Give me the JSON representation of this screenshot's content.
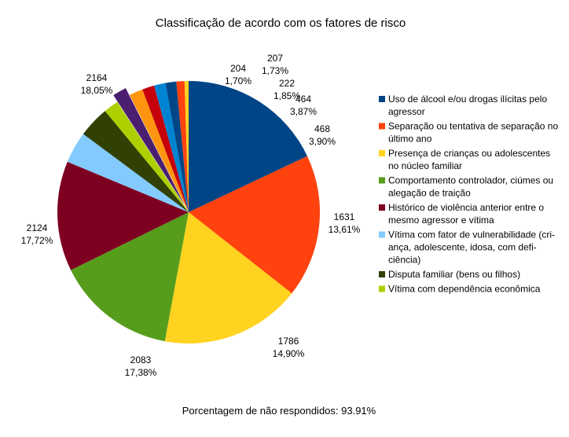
{
  "chart_data": {
    "type": "pie",
    "title": "Classificação de acordo com os fatores de risco",
    "footnote": "Porcentagem de não respondidos: 93.91%",
    "slices": [
      {
        "value": 2164,
        "value_label": "2164",
        "percent_label": "18,05%",
        "color": "#004586",
        "legend": []
      },
      {
        "value": 2124,
        "value_label": "2124",
        "percent_label": "17,72%",
        "color": "#ff420e",
        "legend": []
      },
      {
        "value": 2083,
        "value_label": "2083",
        "percent_label": "17,38%",
        "color": "#ffd320",
        "legend": []
      },
      {
        "value": 1786,
        "value_label": "1786",
        "percent_label": "14,90%",
        "color": "#579d1c",
        "legend": []
      },
      {
        "value": 1631,
        "value_label": "1631",
        "percent_label": "13,61%",
        "color": "#7e0021",
        "legend": []
      },
      {
        "value": 468,
        "value_label": "468",
        "percent_label": "3,90%",
        "color": "#83caff",
        "legend": []
      },
      {
        "value": 464,
        "value_label": "464",
        "percent_label": "3,87%",
        "color": "#314004",
        "legend": []
      },
      {
        "value": 222,
        "value_label": "222",
        "percent_label": "1,85%",
        "color": "#aecf00",
        "legend": []
      },
      {
        "value": 207,
        "value_label": "207",
        "percent_label": "1,73%",
        "color": "#4b1f6f",
        "legend": []
      },
      {
        "value": 204,
        "value_label": "204",
        "percent_label": "1,70%",
        "color": "#ff950e",
        "legend": []
      },
      {
        "value": 180,
        "value_label": "",
        "percent_label": "",
        "color": "#c5000b",
        "legend": []
      },
      {
        "value": 170,
        "value_label": "",
        "percent_label": "",
        "color": "#0084d1",
        "legend": []
      },
      {
        "value": 160,
        "value_label": "",
        "percent_label": "",
        "color": "#004586",
        "legend": []
      },
      {
        "value": 120,
        "value_label": "",
        "percent_label": "",
        "color": "#ff420e",
        "legend": []
      },
      {
        "value": 60,
        "value_label": "",
        "percent_label": "",
        "color": "#ffd320",
        "legend": []
      }
    ],
    "legend_entries": [
      {
        "color": "#004586",
        "lines": [
          "Uso de álcool e/ou drogas ilícitas pelo",
          "agressor"
        ]
      },
      {
        "color": "#ff420e",
        "lines": [
          "Separação ou tentativa de separação no",
          "último ano"
        ]
      },
      {
        "color": "#ffd320",
        "lines": [
          "Presença de crianças ou adolescentes",
          "no núcleo familiar"
        ]
      },
      {
        "color": "#579d1c",
        "lines": [
          "Comportamento controlador, ciúmes ou",
          "alegação de traição"
        ]
      },
      {
        "color": "#7e0021",
        "lines": [
          "Histórico de violência anterior entre o",
          "mesmo agressor e vítima"
        ]
      },
      {
        "color": "#83caff",
        "lines": [
          "Vítima com fator de vulnerabilidade (cri-",
          "ança, adolescente, idosa, com defi-",
          "ciência)"
        ]
      },
      {
        "color": "#314004",
        "lines": [
          "Disputa familiar (bens ou filhos)"
        ]
      },
      {
        "color": "#aecf00",
        "lines": [
          "Vítima com dependência econômica"
        ]
      }
    ],
    "legend_placement": "right",
    "exploded_slice_index": 8
  }
}
